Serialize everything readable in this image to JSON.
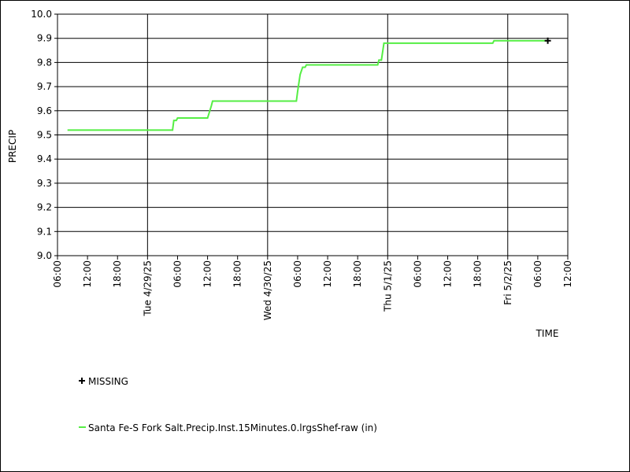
{
  "chart_data": {
    "type": "line",
    "x_label": "TIME",
    "y_label": "PRECIP",
    "xlim": [
      "2025-04-28T06:00",
      "2025-05-02T12:00"
    ],
    "ylim": [
      9.0,
      10.0
    ],
    "yticks": [
      {
        "value": 9.0,
        "label": "9.0"
      },
      9.1,
      9.2,
      9.3,
      9.4,
      9.5,
      9.6,
      9.7,
      9.8,
      9.9,
      {
        "value": 10.0,
        "label": "10.0"
      }
    ],
    "xticks": [
      {
        "value": "2025-04-28T06:00",
        "label": "06:00"
      },
      {
        "value": "2025-04-28T12:00",
        "label": "12:00"
      },
      {
        "value": "2025-04-28T18:00",
        "label": "18:00"
      },
      {
        "value": "2025-04-29T00:00",
        "label": "Tue 4/29/25"
      },
      {
        "value": "2025-04-29T06:00",
        "label": "06:00"
      },
      {
        "value": "2025-04-29T12:00",
        "label": "12:00"
      },
      {
        "value": "2025-04-29T18:00",
        "label": "18:00"
      },
      {
        "value": "2025-04-30T00:00",
        "label": "Wed 4/30/25"
      },
      {
        "value": "2025-04-30T06:00",
        "label": "06:00"
      },
      {
        "value": "2025-04-30T12:00",
        "label": "12:00"
      },
      {
        "value": "2025-04-30T18:00",
        "label": "18:00"
      },
      {
        "value": "2025-05-01T00:00",
        "label": "Thu 5/1/25"
      },
      {
        "value": "2025-05-01T06:00",
        "label": "06:00"
      },
      {
        "value": "2025-05-01T12:00",
        "label": "12:00"
      },
      {
        "value": "2025-05-01T18:00",
        "label": "18:00"
      },
      {
        "value": "2025-05-02T00:00",
        "label": "Fri 5/2/25"
      },
      {
        "value": "2025-05-02T06:00",
        "label": "06:00"
      },
      {
        "value": "2025-05-02T12:00",
        "label": "12:00"
      }
    ],
    "x": [
      "2025-04-28T08:00",
      "2025-04-29T05:00",
      "2025-04-29T05:15",
      "2025-04-29T05:45",
      "2025-04-29T06:00",
      "2025-04-29T12:00",
      "2025-04-29T12:45",
      "2025-04-29T13:00",
      "2025-04-30T05:45",
      "2025-04-30T06:00",
      "2025-04-30T06:30",
      "2025-04-30T07:00",
      "2025-04-30T07:30",
      "2025-04-30T07:45",
      "2025-04-30T22:00",
      "2025-04-30T22:15",
      "2025-04-30T22:45",
      "2025-04-30T23:15",
      "2025-05-01T21:00",
      "2025-05-01T21:15",
      "2025-05-02T08:00"
    ],
    "series": [
      {
        "name": "Santa Fe-S Fork Salt.Precip.Inst.15Minutes.0.lrgsShef-raw (in)",
        "color": "#55ee44",
        "values": [
          9.52,
          9.52,
          9.56,
          9.56,
          9.57,
          9.57,
          9.62,
          9.64,
          9.64,
          9.68,
          9.75,
          9.78,
          9.78,
          9.79,
          9.79,
          9.81,
          9.81,
          9.88,
          9.88,
          9.89,
          9.89
        ]
      }
    ],
    "missing": {
      "name": "MISSING",
      "color": "#000000",
      "x": [
        "2025-05-02T08:00"
      ],
      "values": [
        9.89
      ]
    }
  }
}
